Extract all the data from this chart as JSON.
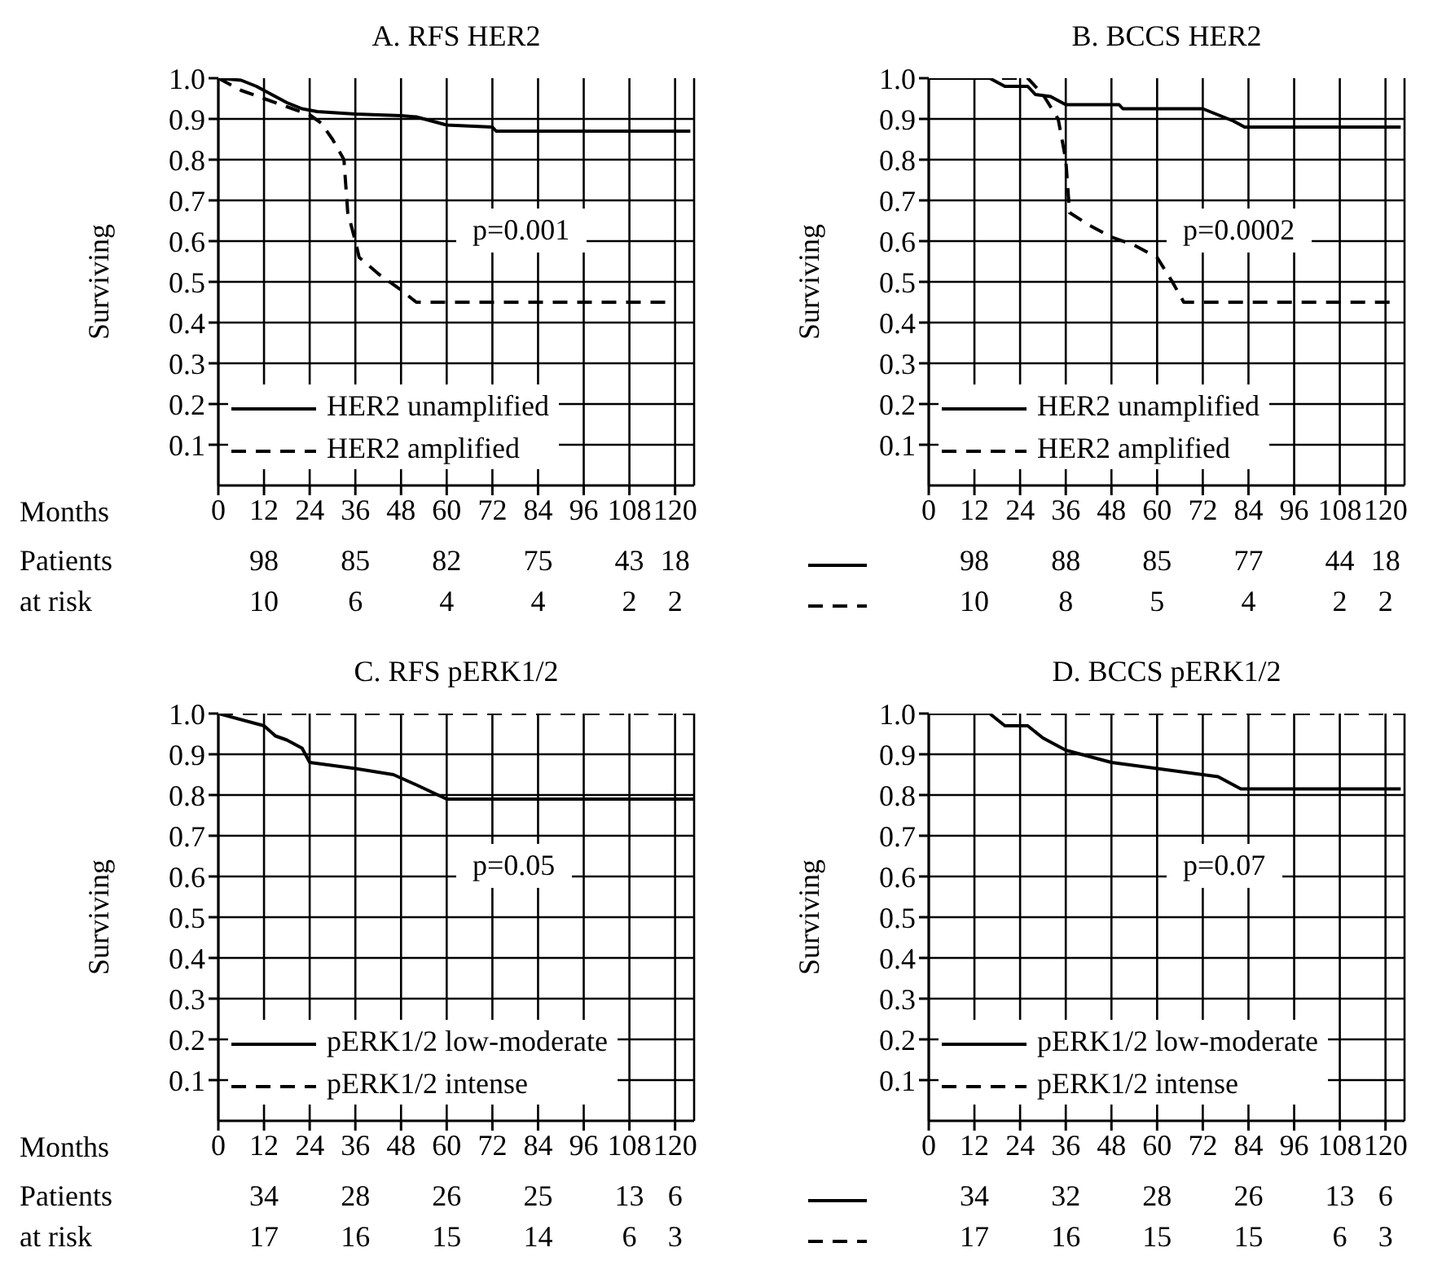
{
  "chart_data": [
    {
      "type": "line",
      "title": "A. RFS HER2",
      "xlabel": "Months",
      "ylabel": "Surviving",
      "xlim": [
        0,
        125
      ],
      "xticks": [
        0,
        12,
        24,
        36,
        48,
        60,
        72,
        84,
        96,
        108,
        120
      ],
      "ylim": [
        0,
        1
      ],
      "yticks": [
        0.1,
        0.2,
        0.3,
        0.4,
        0.5,
        0.6,
        0.7,
        0.8,
        0.9,
        "1.0"
      ],
      "grid": true,
      "legend": "bottom left",
      "series": [
        {
          "name": "HER2 unamplified",
          "color": "#000000",
          "line_style": "solid",
          "x": [
            0,
            6,
            10,
            14,
            18,
            22,
            26,
            36,
            48,
            52,
            56,
            60,
            72,
            73,
            124
          ],
          "values": [
            1.0,
            0.995,
            0.98,
            0.96,
            0.94,
            0.925,
            0.918,
            0.912,
            0.908,
            0.905,
            0.895,
            0.885,
            0.88,
            0.87,
            0.87
          ]
        },
        {
          "name": "HER2 amplified",
          "color": "#000000",
          "line_style": "dashed",
          "x": [
            0,
            6,
            12,
            18,
            24,
            27,
            30,
            33,
            34,
            36,
            37,
            42,
            48,
            52,
            120
          ],
          "values": [
            1.0,
            0.97,
            0.95,
            0.93,
            0.91,
            0.89,
            0.85,
            0.8,
            0.67,
            0.6,
            0.56,
            0.52,
            0.48,
            0.45,
            0.45
          ]
        }
      ],
      "annotations": [
        "p=0.001",
        "Patients at risk",
        "98 85 82 75 43 18",
        "10 6 4 4 2 2"
      ]
    },
    {
      "type": "line",
      "title": "B. BCCS HER2",
      "ylabel": "Surviving",
      "xlim": [
        0,
        125
      ],
      "xticks": [
        0,
        12,
        24,
        36,
        48,
        60,
        72,
        84,
        96,
        108,
        120
      ],
      "ylim": [
        0,
        1
      ],
      "yticks": [
        0.1,
        0.2,
        0.3,
        0.4,
        0.5,
        0.6,
        0.7,
        0.8,
        0.9,
        "1.0"
      ],
      "grid": true,
      "legend": "bottom left",
      "series": [
        {
          "name": "HER2 unamplified",
          "color": "#000000",
          "line_style": "solid",
          "x": [
            0,
            16,
            20,
            26,
            28,
            32,
            36,
            50,
            51,
            72,
            76,
            80,
            83,
            124
          ],
          "values": [
            1.0,
            1.0,
            0.98,
            0.98,
            0.96,
            0.955,
            0.935,
            0.935,
            0.925,
            0.925,
            0.91,
            0.895,
            0.88,
            0.88
          ]
        },
        {
          "name": "HER2 amplified",
          "color": "#000000",
          "line_style": "dashed",
          "x": [
            0,
            26,
            30,
            34,
            35,
            36,
            37,
            42,
            48,
            54,
            60,
            64,
            67,
            122
          ],
          "values": [
            1.0,
            1.0,
            0.96,
            0.9,
            0.85,
            0.8,
            0.67,
            0.64,
            0.61,
            0.59,
            0.56,
            0.5,
            0.45,
            0.45
          ]
        }
      ],
      "annotations": [
        "p=0.0002",
        "98 88 85 77 44 18",
        "10 8 5 4 2 2"
      ]
    },
    {
      "type": "line",
      "title": "C. RFS pERK1/2",
      "xlabel": "Months",
      "ylabel": "Surviving",
      "xlim": [
        0,
        125
      ],
      "xticks": [
        0,
        12,
        24,
        36,
        48,
        60,
        72,
        84,
        96,
        108,
        120
      ],
      "ylim": [
        0,
        1
      ],
      "yticks": [
        0.1,
        0.2,
        0.3,
        0.4,
        0.5,
        0.6,
        0.7,
        0.8,
        0.9,
        "1.0"
      ],
      "grid": true,
      "legend": "bottom left",
      "series": [
        {
          "name": "pERK1/2 low-moderate",
          "color": "#000000",
          "line_style": "solid",
          "x": [
            0,
            12,
            15,
            18,
            22,
            24,
            36,
            46,
            52,
            60,
            125
          ],
          "values": [
            1.0,
            0.97,
            0.945,
            0.935,
            0.915,
            0.88,
            0.865,
            0.85,
            0.825,
            0.79,
            0.79
          ]
        },
        {
          "name": "pERK1/2 intense",
          "color": "#000000",
          "line_style": "dashed",
          "x": [
            0,
            125
          ],
          "values": [
            1.0,
            1.0
          ]
        }
      ],
      "annotations": [
        "p=0.05",
        "Patients at risk",
        "34 28 26 25 13 6",
        "17 16 15 14 6 3"
      ]
    },
    {
      "type": "line",
      "title": "D. BCCS pERK1/2",
      "ylabel": "Surviving",
      "xlim": [
        0,
        125
      ],
      "xticks": [
        0,
        12,
        24,
        36,
        48,
        60,
        72,
        84,
        96,
        108,
        120
      ],
      "ylim": [
        0,
        1
      ],
      "yticks": [
        0.1,
        0.2,
        0.3,
        0.4,
        0.5,
        0.6,
        0.7,
        0.8,
        0.9,
        "1.0"
      ],
      "grid": true,
      "legend": "bottom left",
      "series": [
        {
          "name": "pERK1/2 low-moderate",
          "color": "#000000",
          "line_style": "solid",
          "x": [
            0,
            16,
            20,
            26,
            30,
            36,
            48,
            60,
            72,
            76,
            82,
            124
          ],
          "values": [
            1.0,
            1.0,
            0.97,
            0.97,
            0.94,
            0.91,
            0.88,
            0.865,
            0.85,
            0.845,
            0.815,
            0.815
          ]
        },
        {
          "name": "pERK1/2 intense",
          "color": "#000000",
          "line_style": "dashed",
          "x": [
            0,
            125
          ],
          "values": [
            1.0,
            1.0
          ]
        }
      ],
      "annotations": [
        "p=0.07",
        "34 32 28 26 13 6",
        "17 16 15 15 6 3"
      ]
    }
  ]
}
